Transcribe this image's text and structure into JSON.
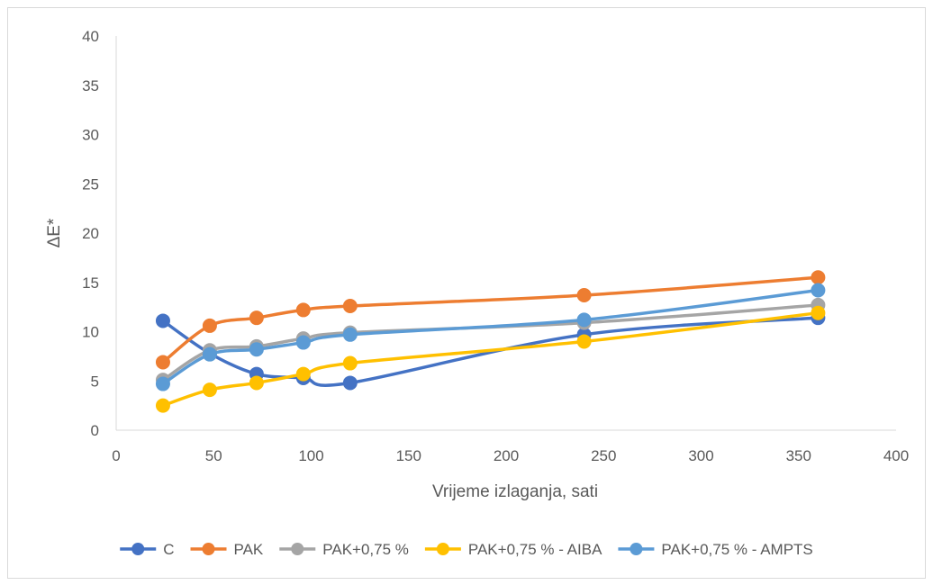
{
  "chart_data": {
    "type": "line",
    "xlabel": "Vrijeme izlaganja, sati",
    "ylabel": "ΔE*",
    "xlim": [
      0,
      400
    ],
    "ylim": [
      0,
      40
    ],
    "x_ticks": [
      "0",
      "50",
      "100",
      "150",
      "200",
      "250",
      "300",
      "350",
      "400"
    ],
    "y_ticks": [
      "0",
      "5",
      "10",
      "15",
      "20",
      "25",
      "30",
      "35",
      "40"
    ],
    "grid": false,
    "legend_position": "bottom",
    "smooth": true,
    "x": [
      24,
      48,
      72,
      96,
      120,
      240,
      360
    ],
    "series": [
      {
        "name": "C",
        "color": "#4472C4",
        "values": [
          11.1,
          7.8,
          5.7,
          5.3,
          4.8,
          9.7,
          11.4
        ]
      },
      {
        "name": "PAK",
        "color": "#ED7D31",
        "values": [
          6.9,
          10.6,
          11.4,
          12.2,
          12.6,
          13.7,
          15.5
        ]
      },
      {
        "name": "PAK+0,75 %",
        "color": "#A5A5A5",
        "values": [
          5.1,
          8.1,
          8.5,
          9.3,
          9.9,
          10.9,
          12.7
        ]
      },
      {
        "name": "PAK+0,75 % - AIBA",
        "color": "#FFC000",
        "values": [
          2.5,
          4.1,
          4.8,
          5.7,
          6.8,
          9.0,
          11.9
        ]
      },
      {
        "name": "PAK+0,75 % - AMPTS",
        "color": "#5B9BD5",
        "values": [
          4.7,
          7.7,
          8.2,
          8.9,
          9.7,
          11.2,
          14.2
        ]
      }
    ]
  }
}
